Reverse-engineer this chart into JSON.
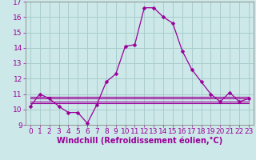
{
  "xlabel": "Windchill (Refroidissement éolien,°C)",
  "background_color": "#cce8e8",
  "grid_color": "#aacccc",
  "line_color": "#990099",
  "spine_color": "#888888",
  "x_values": [
    0,
    1,
    2,
    3,
    4,
    5,
    6,
    7,
    8,
    9,
    10,
    11,
    12,
    13,
    14,
    15,
    16,
    17,
    18,
    19,
    20,
    21,
    22,
    23
  ],
  "main_line": [
    10.2,
    11.0,
    10.7,
    10.2,
    9.8,
    9.8,
    9.1,
    10.3,
    11.8,
    12.3,
    14.1,
    14.2,
    16.6,
    16.6,
    16.0,
    15.6,
    13.8,
    12.6,
    11.8,
    11.0,
    10.5,
    11.1,
    10.5,
    10.7
  ],
  "flat_lines": [
    [
      10.7,
      10.7,
      10.7,
      10.7,
      10.7,
      10.7,
      10.7,
      10.7,
      10.7,
      10.7,
      10.7,
      10.7,
      10.7,
      10.7,
      10.7,
      10.7,
      10.7,
      10.7,
      10.7,
      10.7,
      10.7,
      10.7,
      10.7,
      10.7
    ],
    [
      10.4,
      10.4,
      10.4,
      10.4,
      10.4,
      10.4,
      10.4,
      10.4,
      10.4,
      10.4,
      10.4,
      10.4,
      10.4,
      10.4,
      10.4,
      10.4,
      10.4,
      10.4,
      10.4,
      10.4,
      10.4,
      10.4,
      10.4,
      10.4
    ],
    [
      10.5,
      10.5,
      10.5,
      10.5,
      10.5,
      10.5,
      10.5,
      10.5,
      10.5,
      10.5,
      10.5,
      10.5,
      10.5,
      10.5,
      10.5,
      10.5,
      10.5,
      10.5,
      10.5,
      10.5,
      10.5,
      10.5,
      10.5,
      10.5
    ],
    [
      10.8,
      10.8,
      10.8,
      10.8,
      10.8,
      10.8,
      10.8,
      10.8,
      10.8,
      10.8,
      10.8,
      10.8,
      10.8,
      10.8,
      10.8,
      10.8,
      10.8,
      10.8,
      10.8,
      10.8,
      10.8,
      10.8,
      10.8,
      10.8
    ]
  ],
  "ylim": [
    9.0,
    17.0
  ],
  "yticks": [
    9,
    10,
    11,
    12,
    13,
    14,
    15,
    16,
    17
  ],
  "xlim": [
    -0.5,
    23.5
  ],
  "xticks": [
    0,
    1,
    2,
    3,
    4,
    5,
    6,
    7,
    8,
    9,
    10,
    11,
    12,
    13,
    14,
    15,
    16,
    17,
    18,
    19,
    20,
    21,
    22,
    23
  ],
  "xtick_labels": [
    "0",
    "1",
    "2",
    "3",
    "4",
    "5",
    "6",
    "7",
    "8",
    "9",
    "10",
    "11",
    "12",
    "13",
    "14",
    "15",
    "16",
    "17",
    "18",
    "19",
    "20",
    "21",
    "22",
    "23"
  ],
  "tick_fontsize": 6.5,
  "xlabel_fontsize": 7.0,
  "marker_size": 2.5
}
